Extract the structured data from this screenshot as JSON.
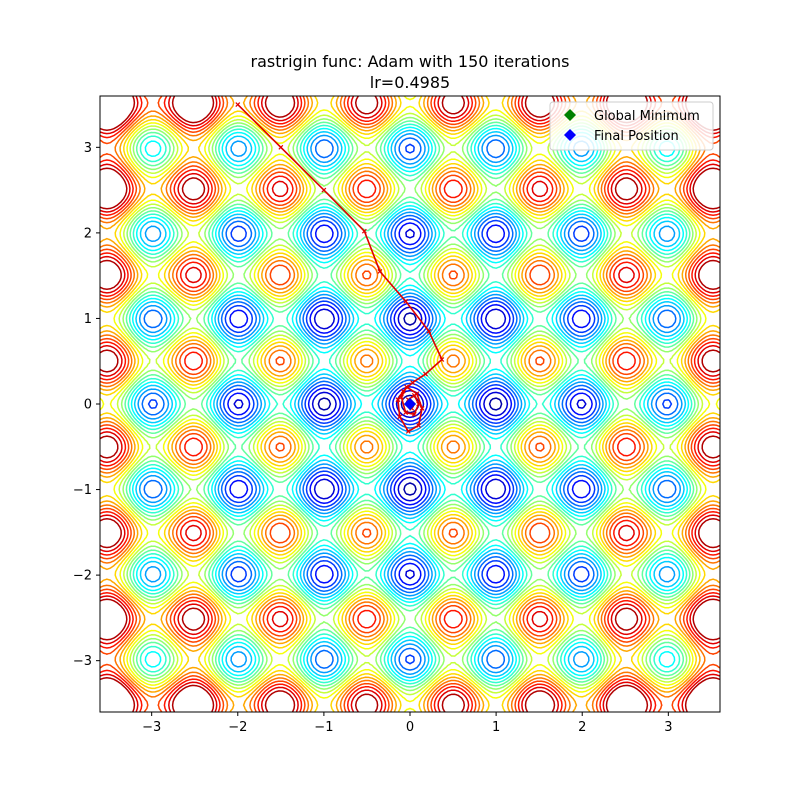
{
  "chart_data": {
    "type": "line",
    "title": "rastrigin func: Adam with 150 iterations",
    "subtitle": "lr=0.4985",
    "xlabel": "",
    "ylabel": "",
    "xlim": [
      -3.6,
      3.6
    ],
    "ylim": [
      -3.6,
      3.6
    ],
    "x_ticks": [
      -3,
      -2,
      -1,
      0,
      1,
      2,
      3
    ],
    "y_ticks": [
      -3,
      -2,
      -1,
      0,
      1,
      2,
      3
    ],
    "x_tick_labels": [
      "−3",
      "−2",
      "−1",
      "0",
      "1",
      "2",
      "3"
    ],
    "y_tick_labels": [
      "−3",
      "−2",
      "−1",
      "0",
      "1",
      "2",
      "3"
    ],
    "grid": false,
    "legend_position": "top-right",
    "contour": {
      "function": "rastrigin",
      "colormap": "jet",
      "levels": [
        2,
        4.5,
        7,
        9.5,
        12,
        14.5,
        17,
        19.5,
        22,
        24.5,
        27,
        29.5,
        32,
        34.5,
        37,
        39.5,
        42,
        44.5,
        47,
        49.5
      ],
      "max_level": 52
    },
    "series": [
      {
        "name": "",
        "style": "trajectory",
        "color": "#e00000",
        "x": [
          -2.0,
          -1.5,
          -1.0,
          -0.53,
          -0.35,
          -0.05,
          0.22,
          0.37,
          0.18,
          0.03,
          -0.08,
          -0.14,
          -0.12,
          -0.02,
          0.1,
          0.14,
          0.08,
          -0.04,
          -0.1,
          -0.05,
          0.05,
          0.1,
          0.05,
          -0.02,
          0.02,
          0.0
        ],
        "y": [
          3.5,
          3.0,
          2.5,
          2.02,
          1.55,
          1.2,
          0.85,
          0.52,
          0.35,
          0.25,
          0.15,
          0.05,
          -0.15,
          -0.32,
          -0.25,
          -0.05,
          0.12,
          0.2,
          0.08,
          -0.1,
          -0.12,
          0.0,
          0.1,
          0.05,
          -0.05,
          0.0
        ]
      }
    ],
    "markers": [
      {
        "name": "Global Minimum",
        "x": 0,
        "y": 0,
        "color": "#008000",
        "shape": "diamond"
      },
      {
        "name": "Final Position",
        "x": 0.0,
        "y": 0.0,
        "color": "#0000ff",
        "shape": "diamond"
      }
    ],
    "legend": [
      {
        "label": "Global Minimum",
        "color": "#008000",
        "shape": "diamond"
      },
      {
        "label": "Final Position",
        "color": "#0000ff",
        "shape": "diamond"
      }
    ]
  }
}
